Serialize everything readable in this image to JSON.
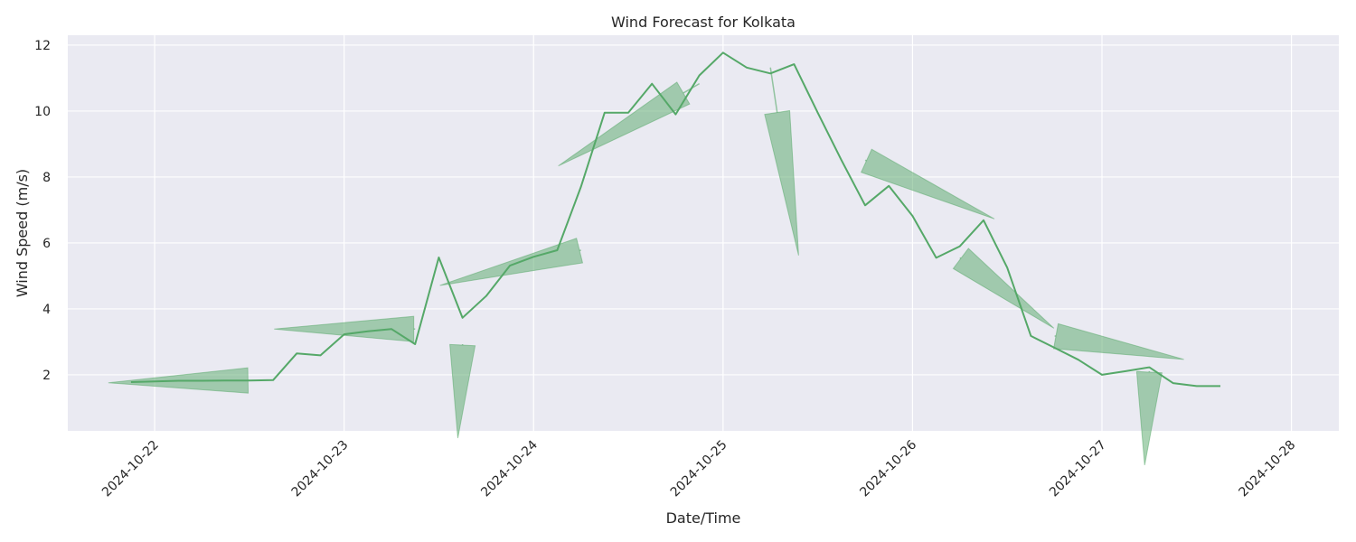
{
  "chart_data": {
    "type": "line",
    "title": "Wind Forecast for Kolkata",
    "xlabel": "Date/Time",
    "ylabel": "Wind Speed (m/s)",
    "xlim": [
      "2024-10-21T13:00",
      "2024-10-28T06:00"
    ],
    "ylim": [
      0.3,
      12.3
    ],
    "x_ticks": [
      "2024-10-22",
      "2024-10-23",
      "2024-10-24",
      "2024-10-25",
      "2024-10-26",
      "2024-10-27",
      "2024-10-28"
    ],
    "y_ticks": [
      2,
      4,
      6,
      8,
      10,
      12
    ],
    "grid": true,
    "background": "#eaeaf2",
    "grid_color": "#ffffff",
    "series": [
      {
        "color": "#55a868",
        "x": [
          "2024-10-21T21:00",
          "2024-10-22T00:00",
          "2024-10-22T03:00",
          "2024-10-22T06:00",
          "2024-10-22T09:00",
          "2024-10-22T12:00",
          "2024-10-22T15:00",
          "2024-10-22T18:00",
          "2024-10-22T21:00",
          "2024-10-23T00:00",
          "2024-10-23T03:00",
          "2024-10-23T06:00",
          "2024-10-23T09:00",
          "2024-10-23T12:00",
          "2024-10-23T15:00",
          "2024-10-23T18:00",
          "2024-10-23T21:00",
          "2024-10-24T00:00",
          "2024-10-24T03:00",
          "2024-10-24T06:00",
          "2024-10-24T09:00",
          "2024-10-24T12:00",
          "2024-10-24T15:00",
          "2024-10-24T18:00",
          "2024-10-24T21:00",
          "2024-10-25T00:00",
          "2024-10-25T03:00",
          "2024-10-25T06:00",
          "2024-10-25T09:00",
          "2024-10-25T12:00",
          "2024-10-25T15:00",
          "2024-10-25T18:00",
          "2024-10-25T21:00",
          "2024-10-26T00:00",
          "2024-10-26T03:00",
          "2024-10-26T06:00",
          "2024-10-26T09:00",
          "2024-10-26T12:00",
          "2024-10-26T15:00",
          "2024-10-26T18:00",
          "2024-10-26T21:00",
          "2024-10-27T00:00",
          "2024-10-27T03:00",
          "2024-10-27T06:00",
          "2024-10-27T09:00",
          "2024-10-27T12:00",
          "2024-10-27T15:00"
        ],
        "y": [
          1.78,
          1.8,
          1.82,
          1.82,
          1.83,
          1.83,
          1.84,
          2.65,
          2.59,
          3.23,
          3.32,
          3.39,
          2.93,
          5.56,
          3.73,
          4.39,
          5.31,
          5.58,
          5.78,
          7.7,
          9.95,
          9.95,
          10.83,
          9.9,
          11.08,
          11.77,
          11.32,
          11.14,
          11.42,
          9.95,
          8.51,
          7.14,
          7.73,
          6.82,
          5.55,
          5.9,
          6.69,
          5.25,
          3.18,
          2.82,
          2.46,
          2.0,
          2.11,
          2.23,
          1.75,
          1.66,
          1.66
        ]
      }
    ],
    "wind_arrows": [
      {
        "x": "2024-10-22T12:00",
        "y": 1.83,
        "u": -0.6,
        "v": -0.01
      },
      {
        "x": "2024-10-23T09:00",
        "y": 3.39,
        "u": -0.6,
        "v": 0.0
      },
      {
        "x": "2024-10-23T15:00",
        "y": 2.93,
        "u": -0.02,
        "v": -0.4
      },
      {
        "x": "2024-10-24T06:00",
        "y": 5.78,
        "u": -0.6,
        "v": -0.15
      },
      {
        "x": "2024-10-24T21:00",
        "y": 10.83,
        "u": -0.6,
        "v": -0.35
      },
      {
        "x": "2024-10-25T06:00",
        "y": 11.32,
        "u": 0.12,
        "v": -0.8
      },
      {
        "x": "2024-10-25T18:00",
        "y": 8.51,
        "u": 0.55,
        "v": -0.25
      },
      {
        "x": "2024-10-26T06:00",
        "y": 5.55,
        "u": 0.4,
        "v": -0.3
      },
      {
        "x": "2024-10-26T18:00",
        "y": 3.18,
        "u": 0.55,
        "v": -0.1
      },
      {
        "x": "2024-10-27T06:00",
        "y": 2.11,
        "u": -0.02,
        "v": -0.4
      }
    ]
  }
}
